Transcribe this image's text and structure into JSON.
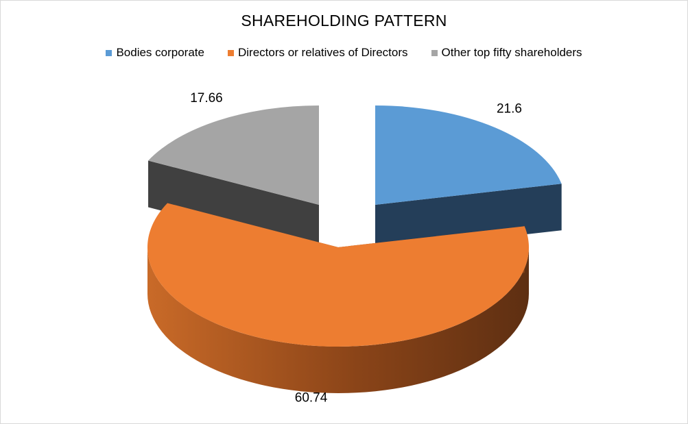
{
  "chart_data": {
    "type": "pie",
    "style": "3d-exploded",
    "title": "SHAREHOLDING PATTERN",
    "legend_position": "top",
    "slices": [
      {
        "name": "Bodies corporate",
        "value": 21.6,
        "label": "21.6",
        "color": "#5b9bd5",
        "side_color": "#243e59"
      },
      {
        "name": "Directors or relatives of Directors",
        "value": 60.74,
        "label": "60.74",
        "color": "#ed7d31",
        "side_color": "#8a4418"
      },
      {
        "name": "Other top fifty shareholders",
        "value": 17.66,
        "label": "17.66",
        "color": "#a5a5a5",
        "side_color": "#404040"
      }
    ]
  }
}
